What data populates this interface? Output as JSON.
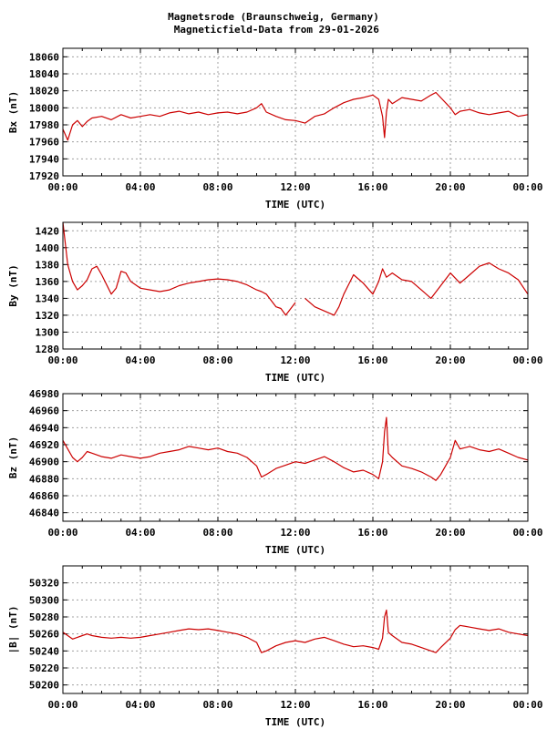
{
  "header": {
    "title_line1": "Magnetsrode (Braunschweig, Germany)",
    "title_line2": "Magneticfield-Data from 29-01-2026"
  },
  "colors": {
    "line": "#cc0000",
    "grid": "#a0a0a0",
    "frame": "#000000"
  },
  "chart_data": [
    {
      "type": "line",
      "series": [
        {
          "name": "",
          "x_hours": [
            0,
            0.25,
            0.5,
            0.75,
            1,
            1.25,
            1.5,
            2,
            2.5,
            3,
            3.5,
            4,
            4.5,
            5,
            5.5,
            6,
            6.5,
            7,
            7.5,
            8,
            8.5,
            9,
            9.5,
            10,
            10.25,
            10.5,
            11,
            11.5,
            12,
            12.5,
            13,
            13.5,
            14,
            14.5,
            15,
            15.5,
            16,
            16.3,
            16.5,
            16.6,
            16.7,
            16.8,
            17,
            17.5,
            18,
            18.5,
            19,
            19.25,
            19.5,
            20,
            20.25,
            20.5,
            21,
            21.5,
            22,
            22.5,
            23,
            23.5,
            24
          ],
          "values": [
            17975,
            17962,
            17980,
            17985,
            17978,
            17984,
            17988,
            17990,
            17986,
            17992,
            17988,
            17990,
            17992,
            17990,
            17994,
            17996,
            17993,
            17995,
            17992,
            17994,
            17995,
            17993,
            17995,
            18000,
            18005,
            17995,
            17990,
            17986,
            17985,
            17982,
            17990,
            17993,
            18000,
            18006,
            18010,
            18012,
            18015,
            18010,
            17990,
            17965,
            17995,
            18010,
            18005,
            18012,
            18010,
            18008,
            18015,
            18018,
            18012,
            18000,
            17992,
            17996,
            17998,
            17994,
            17992,
            17994,
            17996,
            17990,
            17992
          ]
        }
      ],
      "xlabel": "TIME (UTC)",
      "ylabel": "Bx (nT)",
      "xlim": [
        0,
        24
      ],
      "ylim": [
        17920,
        18070
      ],
      "x_ticks": [
        "00:00",
        "04:00",
        "08:00",
        "12:00",
        "16:00",
        "20:00",
        "00:00"
      ],
      "y_ticks": [
        "17920",
        "17940",
        "17960",
        "17980",
        "18000",
        "18020",
        "18040",
        "18060"
      ],
      "grid": true
    },
    {
      "type": "line",
      "series": [
        {
          "name": "",
          "x_hours": [
            0,
            0.25,
            0.5,
            0.75,
            1,
            1.25,
            1.5,
            1.75,
            2,
            2.5,
            2.75,
            3,
            3.25,
            3.5,
            4,
            4.5,
            5,
            5.5,
            6,
            6.5,
            7,
            7.5,
            8,
            8.5,
            9,
            9.5,
            10,
            10.25,
            10.5,
            11,
            11.25,
            11.5,
            12,
            12.5,
            13,
            13.5,
            14,
            14.25,
            14.5,
            15,
            15.5,
            16,
            16.3,
            16.5,
            16.7,
            17,
            17.5,
            18,
            18.5,
            19,
            19.5,
            20,
            20.5,
            21,
            21.5,
            22,
            22.5,
            23,
            23.5,
            24
          ],
          "values": [
            1430,
            1380,
            1360,
            1350,
            1355,
            1362,
            1375,
            1378,
            1368,
            1345,
            1352,
            1372,
            1370,
            1360,
            1352,
            1350,
            1348,
            1350,
            1355,
            1358,
            1360,
            1362,
            1363,
            1362,
            1360,
            1356,
            1350,
            1348,
            1345,
            1330,
            1328,
            1320,
            1335,
            1340,
            1330,
            1325,
            1320,
            1330,
            1345,
            1368,
            1358,
            1345,
            1360,
            1375,
            1365,
            1370,
            1362,
            1360,
            1350,
            1340,
            1355,
            1370,
            1358,
            1368,
            1378,
            1382,
            1375,
            1370,
            1362,
            1345
          ],
          "gap_start": 12.0,
          "gap_end": 12.3
        }
      ],
      "xlabel": "TIME (UTC)",
      "ylabel": "By (nT)",
      "xlim": [
        0,
        24
      ],
      "ylim": [
        1280,
        1430
      ],
      "x_ticks": [
        "00:00",
        "04:00",
        "08:00",
        "12:00",
        "16:00",
        "20:00",
        "00:00"
      ],
      "y_ticks": [
        "1280",
        "1300",
        "1320",
        "1340",
        "1360",
        "1380",
        "1400",
        "1420"
      ],
      "grid": true
    },
    {
      "type": "line",
      "series": [
        {
          "name": "",
          "x_hours": [
            0,
            0.25,
            0.5,
            0.75,
            1,
            1.25,
            1.5,
            2,
            2.5,
            3,
            3.5,
            4,
            4.5,
            5,
            5.5,
            6,
            6.5,
            7,
            7.5,
            8,
            8.5,
            9,
            9.5,
            10,
            10.25,
            10.5,
            11,
            11.5,
            12,
            12.5,
            13,
            13.5,
            14,
            14.5,
            15,
            15.5,
            16,
            16.3,
            16.5,
            16.6,
            16.7,
            16.8,
            17,
            17.5,
            18,
            18.5,
            19,
            19.25,
            19.5,
            20,
            20.25,
            20.5,
            21,
            21.5,
            22,
            22.5,
            23,
            23.5,
            24
          ],
          "values": [
            46925,
            46915,
            46905,
            46900,
            46905,
            46912,
            46910,
            46906,
            46904,
            46908,
            46906,
            46904,
            46906,
            46910,
            46912,
            46914,
            46918,
            46916,
            46914,
            46916,
            46912,
            46910,
            46905,
            46895,
            46882,
            46885,
            46892,
            46896,
            46900,
            46898,
            46902,
            46906,
            46900,
            46893,
            46888,
            46890,
            46885,
            46880,
            46900,
            46935,
            46952,
            46910,
            46905,
            46895,
            46892,
            46888,
            46882,
            46878,
            46885,
            46905,
            46925,
            46915,
            46918,
            46914,
            46912,
            46915,
            46910,
            46905,
            46902
          ]
        }
      ],
      "xlabel": "TIME (UTC)",
      "ylabel": "Bz (nT)",
      "xlim": [
        0,
        24
      ],
      "ylim": [
        46830,
        46980
      ],
      "x_ticks": [
        "00:00",
        "04:00",
        "08:00",
        "12:00",
        "16:00",
        "20:00",
        "00:00"
      ],
      "y_ticks": [
        "46840",
        "46860",
        "46880",
        "46900",
        "46920",
        "46940",
        "46960",
        "46980"
      ],
      "grid": true
    },
    {
      "type": "line",
      "series": [
        {
          "name": "",
          "x_hours": [
            0,
            0.25,
            0.5,
            0.75,
            1,
            1.25,
            1.5,
            2,
            2.5,
            3,
            3.5,
            4,
            4.5,
            5,
            5.5,
            6,
            6.5,
            7,
            7.5,
            8,
            8.5,
            9,
            9.5,
            10,
            10.25,
            10.5,
            11,
            11.5,
            12,
            12.5,
            13,
            13.5,
            14,
            14.5,
            15,
            15.5,
            16,
            16.3,
            16.5,
            16.6,
            16.7,
            16.8,
            17,
            17.5,
            18,
            18.5,
            19,
            19.25,
            19.5,
            20,
            20.25,
            20.5,
            21,
            21.5,
            22,
            22.5,
            23,
            23.5,
            24
          ],
          "values": [
            50262,
            50258,
            50254,
            50256,
            50258,
            50260,
            50258,
            50256,
            50255,
            50256,
            50255,
            50256,
            50258,
            50260,
            50262,
            50264,
            50266,
            50265,
            50266,
            50264,
            50262,
            50260,
            50256,
            50250,
            50238,
            50240,
            50246,
            50250,
            50252,
            50250,
            50254,
            50256,
            50252,
            50248,
            50245,
            50246,
            50244,
            50242,
            50255,
            50280,
            50288,
            50262,
            50258,
            50250,
            50248,
            50244,
            50240,
            50238,
            50244,
            50255,
            50265,
            50270,
            50268,
            50266,
            50264,
            50266,
            50262,
            50260,
            50258
          ]
        }
      ],
      "xlabel": "TIME (UTC)",
      "ylabel": "|B| (nT)",
      "xlim": [
        0,
        24
      ],
      "ylim": [
        50190,
        50340
      ],
      "x_ticks": [
        "00:00",
        "04:00",
        "08:00",
        "12:00",
        "16:00",
        "20:00",
        "00:00"
      ],
      "y_ticks": [
        "50200",
        "50220",
        "50240",
        "50260",
        "50280",
        "50300",
        "50320"
      ],
      "grid": true
    }
  ]
}
